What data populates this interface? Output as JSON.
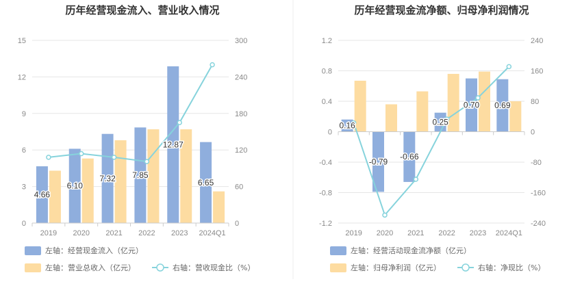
{
  "colors": {
    "bar_primary": "#8FAEDD",
    "bar_secondary": "#FDDCA1",
    "line": "#86D3DC",
    "grid": "#E6E6E6",
    "axis": "#CCCCCC",
    "divider": "#EEEEEE"
  },
  "chart_data": [
    {
      "type": "bar",
      "title": "历年经营现金流入、营业收入情况",
      "categories": [
        "2019",
        "2020",
        "2021",
        "2022",
        "2023",
        "2024Q1"
      ],
      "left_axis": {
        "ylim": [
          0,
          15
        ],
        "ticks": [
          "0",
          "3",
          "6",
          "9",
          "12",
          "15"
        ],
        "tick_values": [
          0,
          3,
          6,
          9,
          12,
          15
        ]
      },
      "right_axis": {
        "ylim": [
          0,
          300
        ],
        "ticks": [
          "0",
          "60",
          "120",
          "180",
          "240",
          "300"
        ],
        "tick_values": [
          0,
          60,
          120,
          180,
          240,
          300
        ]
      },
      "series": [
        {
          "name": "左轴：经营现金流入（亿元）",
          "type": "bar",
          "axis": "left",
          "values": [
            4.66,
            6.1,
            7.32,
            7.85,
            12.87,
            6.65
          ],
          "labels": [
            "4.66",
            "6.10",
            "7.32",
            "7.85",
            "12.87",
            "6.65"
          ]
        },
        {
          "name": "左轴：营业总收入（亿元）",
          "type": "bar",
          "axis": "left",
          "values": [
            4.3,
            5.3,
            6.8,
            7.7,
            7.7,
            2.6
          ]
        },
        {
          "name": "右轴：营收现金比（%）",
          "type": "line",
          "axis": "right",
          "values": [
            108,
            114,
            108,
            101,
            165,
            260
          ]
        }
      ],
      "grid": true,
      "legend_position": "bottom"
    },
    {
      "type": "bar",
      "title": "历年经营现金流净额、归母净利润情况",
      "categories": [
        "2019",
        "2020",
        "2021",
        "2022",
        "2023",
        "2024Q1"
      ],
      "left_axis": {
        "ylim": [
          -1.2,
          1.2
        ],
        "ticks": [
          "-1.2",
          "-0.8",
          "-0.4",
          "0",
          "0.4",
          "0.8",
          "1.2"
        ],
        "tick_values": [
          -1.2,
          -0.8,
          -0.4,
          0,
          0.4,
          0.8,
          1.2
        ]
      },
      "right_axis": {
        "ylim": [
          -240,
          240
        ],
        "ticks": [
          "-240",
          "-160",
          "-80",
          "0",
          "80",
          "160",
          "240"
        ],
        "tick_values": [
          -240,
          -160,
          -80,
          0,
          80,
          160,
          240
        ]
      },
      "series": [
        {
          "name": "左轴：经营活动现金流净额（亿元）",
          "type": "bar",
          "axis": "left",
          "values": [
            0.16,
            -0.79,
            -0.66,
            0.25,
            0.7,
            0.69
          ],
          "labels": [
            "0.16",
            "-0.79",
            "-0.66",
            "0.25",
            "0.70",
            "0.69"
          ]
        },
        {
          "name": "左轴：归母净利润（亿元）",
          "type": "bar",
          "axis": "left",
          "values": [
            0.67,
            0.36,
            0.53,
            0.76,
            0.79,
            0.4
          ]
        },
        {
          "name": "右轴：净现比（%）",
          "type": "line",
          "axis": "right",
          "values": [
            23,
            -219,
            -125,
            33,
            89,
            171
          ]
        }
      ],
      "grid": true,
      "legend_position": "bottom"
    }
  ]
}
